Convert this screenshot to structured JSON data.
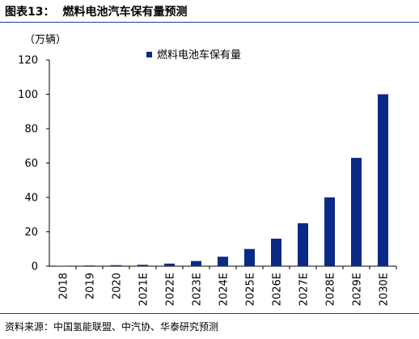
{
  "figure": {
    "label": "图表13：",
    "title": "燃料电池汽车保有量预测",
    "unit": "（万辆）",
    "source": "资料来源：中国氢能联盟、中汽协、华泰研究预测"
  },
  "chart_data": {
    "type": "bar",
    "categories": [
      "2018",
      "2019",
      "2020",
      "2021E",
      "2022E",
      "2023E",
      "2024E",
      "2025E",
      "2026E",
      "2027E",
      "2028E",
      "2029E",
      "2030E"
    ],
    "series": [
      {
        "name": "燃料电池车保有量",
        "values": [
          0.2,
          0.4,
          0.6,
          0.8,
          1.5,
          3,
          5.5,
          10,
          16,
          25,
          40,
          63,
          100
        ],
        "color": "#0a2a85"
      }
    ],
    "yticks": [
      "0",
      "20",
      "40",
      "60",
      "80",
      "100",
      "120"
    ],
    "ylim": [
      0,
      120
    ],
    "legend_position": "top",
    "grid": false
  }
}
